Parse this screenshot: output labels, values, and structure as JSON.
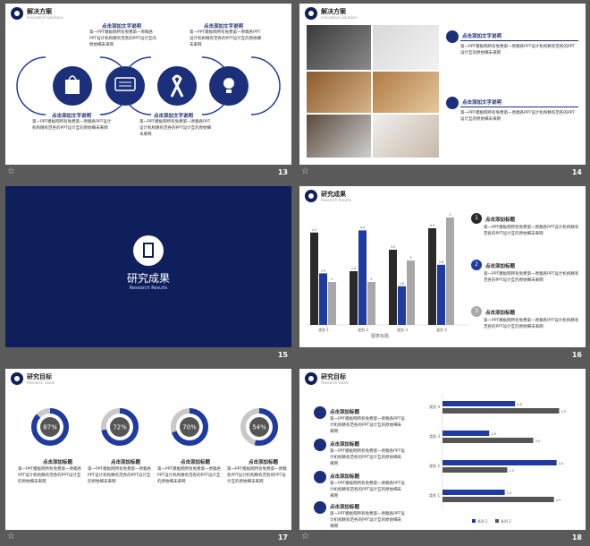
{
  "colors": {
    "navy": "#0e1f5b",
    "blue": "#1f3aa0",
    "dark": "#2a2a2a",
    "gray": "#a8a8a8",
    "bg": "#5a5a5a"
  },
  "common": {
    "click_title": "点击添加文字说明",
    "click_heading": "点击添加标题",
    "body": "第一PPT模板网所有免费第一原稿各PPT设计机构精有范各的PPT设计互的原始细未来网"
  },
  "slides": {
    "s13": {
      "number": "13",
      "title": "解决方案",
      "subtitle": "Innovative Solutions",
      "icons": [
        "bag-icon",
        "chat-icon",
        "ribbon-icon",
        "bulb-icon"
      ]
    },
    "s14": {
      "number": "14",
      "title": "解决方案",
      "subtitle": "Innovative Solutions"
    },
    "s15": {
      "number": "15",
      "title": "研究成果",
      "subtitle": "Research Results"
    },
    "s16": {
      "number": "16",
      "title": "研究成果",
      "subtitle": "Research Results",
      "bullets": [
        "1",
        "2",
        "3"
      ],
      "axis_caption": "图表标题"
    },
    "s17": {
      "number": "17",
      "title": "研究目标",
      "subtitle": "Research Goals",
      "rings": [
        {
          "label": "87%",
          "value": 87
        },
        {
          "label": "72%",
          "value": 72
        },
        {
          "label": "70%",
          "value": 70
        },
        {
          "label": "54%",
          "value": 54
        }
      ]
    },
    "s18": {
      "number": "18",
      "title": "研究目标",
      "subtitle": "Research Goals",
      "legend": [
        "系列 1",
        "系列 2"
      ]
    }
  },
  "chart_data": [
    {
      "type": "bar",
      "categories": [
        "类别 1",
        "类别 2",
        "类别 3",
        "类别 4"
      ],
      "series": [
        {
          "name": "系列 1",
          "values": [
            4.3,
            2.5,
            3.5,
            4.5
          ]
        },
        {
          "name": "系列 2",
          "values": [
            2.4,
            4.4,
            1.8,
            2.8
          ]
        },
        {
          "name": "系列 3",
          "values": [
            2,
            2,
            3,
            5
          ]
        }
      ],
      "ylim": [
        0,
        5
      ]
    },
    {
      "type": "bar",
      "orientation": "horizontal",
      "categories": [
        "类别 4",
        "类别 3",
        "类别 2",
        "类别 1"
      ],
      "series": [
        {
          "name": "系列 1",
          "values": [
            2.8,
            1.8,
            4.4,
            2.4
          ]
        },
        {
          "name": "系列 2",
          "values": [
            4.5,
            3.5,
            2.5,
            4.3
          ]
        }
      ],
      "xlim": [
        0,
        5
      ]
    }
  ]
}
